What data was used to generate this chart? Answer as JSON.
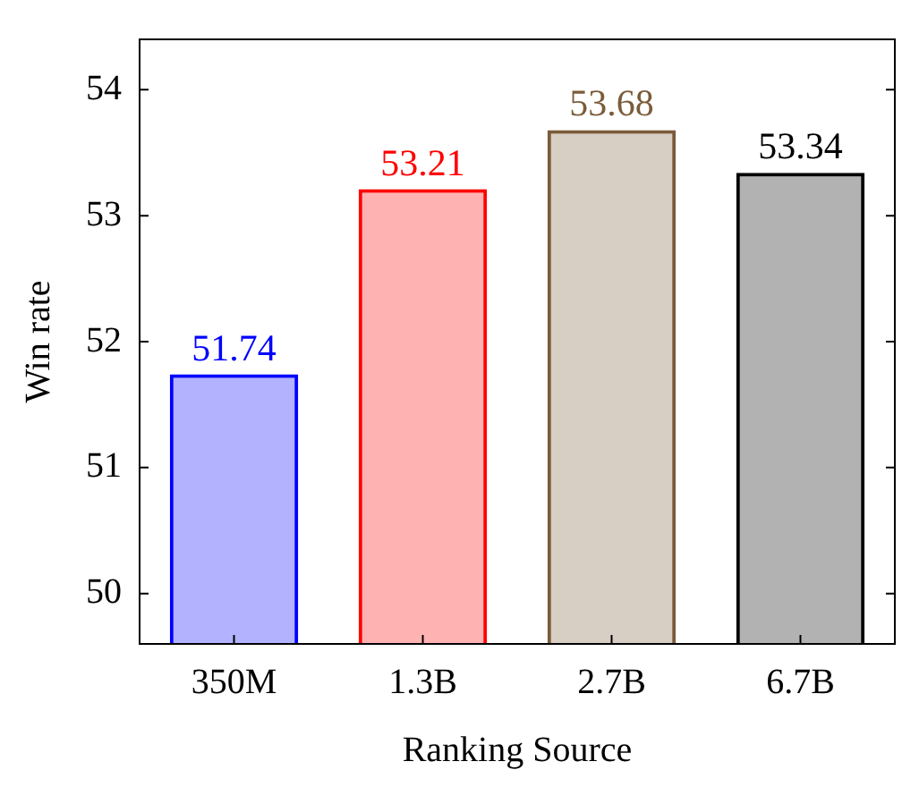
{
  "chart_data": {
    "type": "bar",
    "xlabel": "Ranking Source",
    "ylabel": "Win rate",
    "categories": [
      "350M",
      "1.3B",
      "2.7B",
      "6.7B"
    ],
    "values": [
      51.74,
      53.21,
      53.68,
      53.34
    ],
    "colors": [
      "#0000ff",
      "#ff0000",
      "#7a5c3a",
      "#000000"
    ],
    "ylim": [
      49.6,
      54.4
    ],
    "yticks": [
      50,
      51,
      52,
      53,
      54
    ],
    "grid": false,
    "legend": false,
    "data_labels": true
  }
}
